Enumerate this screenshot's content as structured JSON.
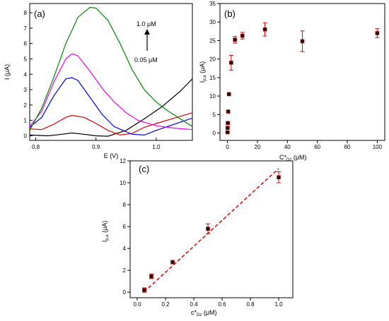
{
  "chart_data": [
    {
      "panel_label": "(a)",
      "type": "line",
      "xlabel": "E (V)",
      "ylabel": "I (μA)",
      "xlim": [
        0.79,
        1.06
      ],
      "ylim": [
        -0.3,
        8.6
      ],
      "xticks": [
        0.8,
        0.9,
        1.0
      ],
      "xtick_labels": [
        "0.8",
        "0.9",
        "1.0"
      ],
      "yticks": [
        0,
        1,
        2,
        3,
        4,
        5,
        6,
        7,
        8
      ],
      "ytick_labels": [
        "0",
        "1",
        "2",
        "3",
        "4",
        "5",
        "6",
        "7",
        "8"
      ],
      "annotation_top": "1.0 μM",
      "annotation_bottom": "0.05 μM",
      "grid": false,
      "series": [
        {
          "color": "#000000",
          "points": [
            [
              0.79,
              0.05
            ],
            [
              0.82,
              0.0
            ],
            [
              0.84,
              0.08
            ],
            [
              0.86,
              0.18
            ],
            [
              0.88,
              0.1
            ],
            [
              0.9,
              0.0
            ],
            [
              0.92,
              -0.03
            ],
            [
              0.95,
              0.35
            ],
            [
              0.98,
              1.1
            ],
            [
              1.01,
              1.9
            ],
            [
              1.04,
              2.9
            ],
            [
              1.06,
              3.7
            ]
          ]
        },
        {
          "color": "#e00000",
          "points": [
            [
              0.79,
              0.45
            ],
            [
              0.81,
              0.4
            ],
            [
              0.83,
              0.75
            ],
            [
              0.85,
              1.2
            ],
            [
              0.86,
              1.33
            ],
            [
              0.88,
              1.2
            ],
            [
              0.9,
              0.8
            ],
            [
              0.92,
              0.35
            ],
            [
              0.94,
              0.05
            ],
            [
              0.96,
              0.15
            ],
            [
              0.98,
              0.55
            ],
            [
              1.0,
              0.8
            ],
            [
              1.03,
              1.15
            ],
            [
              1.06,
              1.5
            ]
          ]
        },
        {
          "color": "#0000dd",
          "points": [
            [
              0.79,
              0.55
            ],
            [
              0.81,
              1.2
            ],
            [
              0.83,
              2.6
            ],
            [
              0.85,
              3.7
            ],
            [
              0.86,
              3.78
            ],
            [
              0.87,
              3.6
            ],
            [
              0.89,
              2.5
            ],
            [
              0.91,
              1.4
            ],
            [
              0.93,
              0.6
            ],
            [
              0.96,
              0.1
            ],
            [
              0.98,
              0.05
            ],
            [
              1.0,
              0.35
            ],
            [
              1.03,
              0.75
            ],
            [
              1.06,
              1.15
            ]
          ]
        },
        {
          "color": "#ee00ee",
          "points": [
            [
              0.79,
              0.6
            ],
            [
              0.81,
              1.6
            ],
            [
              0.83,
              3.5
            ],
            [
              0.85,
              5.0
            ],
            [
              0.86,
              5.33
            ],
            [
              0.87,
              5.2
            ],
            [
              0.89,
              4.2
            ],
            [
              0.91,
              3.1
            ],
            [
              0.93,
              2.2
            ],
            [
              0.95,
              1.5
            ],
            [
              0.97,
              1.0
            ],
            [
              1.0,
              0.65
            ],
            [
              1.03,
              0.5
            ],
            [
              1.06,
              0.4
            ]
          ]
        },
        {
          "color": "#008800",
          "points": [
            [
              0.79,
              0.35
            ],
            [
              0.81,
              1.8
            ],
            [
              0.83,
              3.8
            ],
            [
              0.85,
              6.0
            ],
            [
              0.87,
              7.7
            ],
            [
              0.89,
              8.35
            ],
            [
              0.9,
              8.3
            ],
            [
              0.92,
              7.5
            ],
            [
              0.94,
              6.0
            ],
            [
              0.96,
              4.3
            ],
            [
              0.98,
              3.0
            ],
            [
              1.0,
              2.2
            ],
            [
              1.02,
              1.6
            ],
            [
              1.04,
              1.1
            ],
            [
              1.06,
              0.6
            ]
          ]
        }
      ]
    },
    {
      "panel_label": "(b)",
      "type": "scatter",
      "xlabel": "C*Dz (μM)",
      "ylabel": "Ip,a (μA)",
      "xlim": [
        -5,
        105
      ],
      "ylim": [
        -2,
        35
      ],
      "xticks": [
        0,
        20,
        40,
        60,
        80,
        100
      ],
      "xtick_labels": [
        "0",
        "20",
        "40",
        "60",
        "80",
        "100"
      ],
      "yticks": [
        0,
        5,
        10,
        15,
        20,
        25,
        30,
        35
      ],
      "ytick_labels": [
        "0",
        "5",
        "10",
        "15",
        "20",
        "25",
        "30",
        "35"
      ],
      "grid": false,
      "points": [
        {
          "x": 0.05,
          "y": 0.2,
          "err": 0.2
        },
        {
          "x": 0.1,
          "y": 1.4,
          "err": 0.2
        },
        {
          "x": 0.25,
          "y": 2.7,
          "err": 0.2
        },
        {
          "x": 0.5,
          "y": 5.8,
          "err": 0.3
        },
        {
          "x": 1.0,
          "y": 10.5,
          "err": 0.3
        },
        {
          "x": 2.5,
          "y": 19.0,
          "err": 2.0
        },
        {
          "x": 5,
          "y": 25.2,
          "err": 0.9
        },
        {
          "x": 10,
          "y": 26.3,
          "err": 0.9
        },
        {
          "x": 25,
          "y": 28.0,
          "err": 1.8
        },
        {
          "x": 50,
          "y": 24.8,
          "err": 2.8
        },
        {
          "x": 100,
          "y": 27.0,
          "err": 1.2
        }
      ]
    },
    {
      "panel_label": "(c)",
      "type": "scatter",
      "xlabel": "c*Dz (μM)",
      "ylabel": "Ip,a (μA)",
      "xlim": [
        -0.05,
        1.1
      ],
      "ylim": [
        -0.5,
        12
      ],
      "xticks": [
        0.0,
        0.2,
        0.4,
        0.6,
        0.8,
        1.0
      ],
      "xtick_labels": [
        "0.0",
        "0.2",
        "0.4",
        "0.6",
        "0.8",
        "1.0"
      ],
      "yticks": [
        0,
        2,
        4,
        6,
        8,
        10,
        12
      ],
      "ytick_labels": [
        "0",
        "2",
        "4",
        "6",
        "8",
        "10",
        "12"
      ],
      "grid": false,
      "points": [
        {
          "x": 0.05,
          "y": 0.2,
          "err": 0.2
        },
        {
          "x": 0.1,
          "y": 1.45,
          "err": 0.2
        },
        {
          "x": 0.25,
          "y": 2.75,
          "err": 0.15
        },
        {
          "x": 0.5,
          "y": 5.8,
          "err": 0.45
        },
        {
          "x": 1.0,
          "y": 10.5,
          "err": 0.5
        }
      ],
      "fit_line": {
        "color": "#e00000",
        "x": [
          0.05,
          1.0
        ],
        "y": [
          0.05,
          11.3
        ]
      }
    }
  ]
}
